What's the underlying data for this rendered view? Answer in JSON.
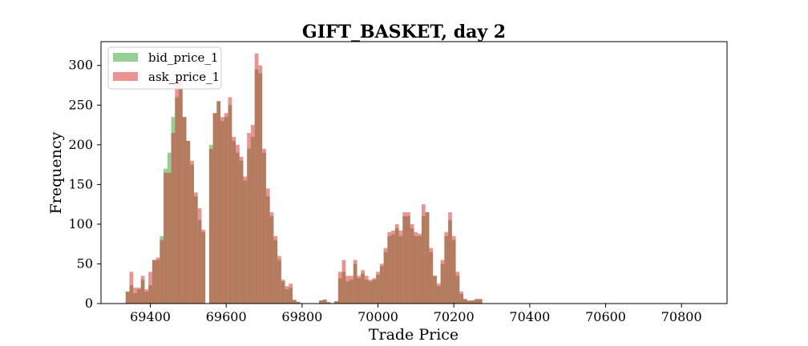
{
  "chart_data": {
    "type": "histogram",
    "title": "GIFT_BASKET, day 2",
    "xlabel": "Trade Price",
    "ylabel": "Frequency",
    "xlim": [
      69270,
      70920
    ],
    "ylim": [
      0,
      330
    ],
    "xticks": [
      69400,
      69600,
      69800,
      70000,
      70200,
      70400,
      70600,
      70800
    ],
    "yticks": [
      0,
      50,
      100,
      150,
      200,
      250,
      300
    ],
    "grid": false,
    "legend_position": "top-left",
    "bin_start": 69335,
    "bin_width": 10,
    "series": [
      {
        "name": "bid_price_1",
        "color": "#2ca02c",
        "alpha": 0.5,
        "values": [
          15,
          23,
          13,
          18,
          30,
          15,
          23,
          55,
          55,
          85,
          170,
          190,
          235,
          260,
          270,
          235,
          205,
          175,
          135,
          105,
          90,
          0,
          200,
          240,
          255,
          230,
          235,
          250,
          205,
          190,
          180,
          155,
          195,
          210,
          295,
          290,
          190,
          135,
          110,
          80,
          55,
          28,
          18,
          20,
          4,
          2,
          0,
          0,
          0,
          0,
          0,
          4,
          5,
          1,
          0,
          3,
          32,
          40,
          28,
          30,
          50,
          32,
          38,
          30,
          28,
          30,
          36,
          47,
          65,
          85,
          87,
          95,
          85,
          110,
          110,
          95,
          85,
          85,
          110,
          115,
          65,
          35,
          22,
          50,
          85,
          105,
          80,
          35,
          12,
          5,
          3,
          4,
          5,
          5,
          0,
          0,
          0,
          0,
          0,
          0,
          0,
          0,
          0,
          0,
          0,
          0,
          0,
          0,
          0,
          0,
          0,
          0,
          0,
          0,
          0,
          0,
          0,
          0,
          0,
          0,
          0,
          0,
          0,
          0,
          0,
          0,
          0,
          0,
          0,
          0,
          0,
          0,
          0,
          0,
          0,
          0,
          0,
          0,
          0,
          0,
          0,
          0,
          0,
          0,
          0,
          0,
          0,
          0,
          0,
          0,
          0,
          0,
          0,
          0,
          0,
          0,
          0,
          0,
          0,
          0,
          0,
          0,
          0,
          0,
          0,
          0,
          0,
          0,
          0,
          0,
          0,
          0,
          0,
          0,
          0,
          0,
          0,
          0,
          0,
          0,
          0,
          0,
          0,
          0,
          0,
          0,
          0,
          0,
          0,
          0,
          0,
          0,
          0,
          0,
          0,
          0,
          0,
          0,
          0,
          0,
          0,
          0,
          0,
          0,
          0,
          0,
          0,
          0,
          0,
          0,
          0,
          0,
          0,
          0,
          0,
          0,
          0,
          0,
          0,
          0,
          0,
          0,
          0,
          0,
          0,
          0,
          0,
          0,
          0,
          0,
          0,
          0,
          0,
          0,
          0,
          0,
          0
        ]
      },
      {
        "name": "ask_price_1",
        "color": "#d62728",
        "alpha": 0.5,
        "values": [
          15,
          40,
          20,
          20,
          35,
          18,
          40,
          55,
          58,
          80,
          165,
          165,
          215,
          280,
          285,
          235,
          205,
          180,
          140,
          120,
          93,
          0,
          195,
          240,
          255,
          235,
          240,
          260,
          210,
          200,
          185,
          160,
          215,
          225,
          315,
          300,
          195,
          145,
          115,
          85,
          60,
          30,
          22,
          25,
          5,
          2,
          0,
          0,
          0,
          0,
          0,
          4,
          5,
          2,
          0,
          3,
          40,
          55,
          35,
          35,
          55,
          35,
          42,
          35,
          30,
          32,
          40,
          50,
          70,
          90,
          92,
          100,
          92,
          115,
          115,
          100,
          90,
          88,
          125,
          115,
          70,
          35,
          25,
          55,
          90,
          115,
          85,
          40,
          15,
          6,
          4,
          4,
          6,
          6,
          0,
          0,
          0,
          0,
          0,
          0,
          0,
          0,
          0,
          0,
          0,
          0,
          0,
          0,
          0,
          0,
          0,
          0,
          0,
          0,
          0,
          0,
          0,
          0,
          0,
          0,
          0,
          0,
          0,
          0,
          0,
          0,
          0,
          0,
          0,
          0,
          0,
          0,
          0,
          0,
          0,
          0,
          0,
          0,
          0,
          0,
          0,
          0,
          0,
          0,
          0,
          0,
          0,
          0,
          0,
          0,
          0,
          0,
          0,
          0,
          0,
          0,
          0,
          0,
          0,
          0,
          0,
          0,
          0,
          0,
          0,
          0,
          0,
          0,
          0,
          0,
          0,
          0,
          0,
          0,
          0,
          0,
          0,
          0,
          0,
          0,
          0,
          0,
          0,
          0,
          0,
          0,
          0,
          0,
          0,
          0,
          0,
          0,
          0,
          0,
          0,
          0,
          0,
          0,
          0,
          0,
          0,
          0,
          0,
          0,
          0,
          0,
          0,
          0,
          0,
          0,
          0,
          0,
          0,
          0,
          0,
          0,
          0,
          0,
          0,
          0,
          0,
          0,
          0,
          0,
          0,
          0,
          0,
          0,
          0,
          0,
          0,
          0,
          0,
          0,
          0,
          0,
          0
        ]
      }
    ]
  }
}
